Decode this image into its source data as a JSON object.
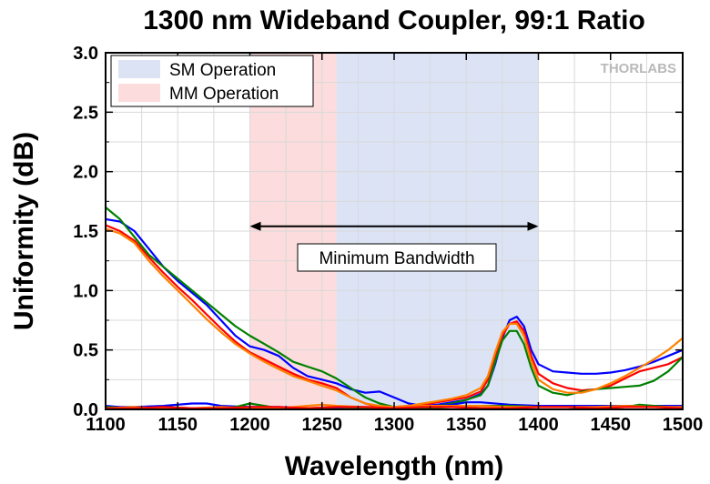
{
  "chart_data": {
    "type": "line",
    "title": "1300 nm Wideband Coupler, 99:1 Ratio",
    "xlabel": "Wavelength (nm)",
    "ylabel": "Uniformity (dB)",
    "xlim": [
      1100,
      1500
    ],
    "ylim": [
      0.0,
      3.0
    ],
    "x_ticks": [
      "1100",
      "1150",
      "1200",
      "1250",
      "1300",
      "1350",
      "1400",
      "1450",
      "1500"
    ],
    "y_ticks": [
      "0.0",
      "0.5",
      "1.0",
      "1.5",
      "2.0",
      "2.5",
      "3.0"
    ],
    "grid": true,
    "legend_position": "top-left",
    "logo": "THORLABS",
    "bands": [
      {
        "name": "SM Operation",
        "x_start": 1260,
        "x_end": 1400,
        "color": "#dbe3f5"
      },
      {
        "name": "MM Operation",
        "x_start": 1200,
        "x_end": 1260,
        "color": "#fcdcdc"
      }
    ],
    "annotation": {
      "text": "Minimum Bandwidth",
      "arrow_x_start": 1200,
      "arrow_x_end": 1400,
      "arrow_y": 1.54
    },
    "series": [
      {
        "color": "#0000ff",
        "x": [
          1100,
          1110,
          1120,
          1130,
          1140,
          1150,
          1160,
          1170,
          1180,
          1190,
          1200,
          1210,
          1220,
          1230,
          1240,
          1250,
          1260,
          1270,
          1280,
          1290,
          1300,
          1310,
          1320,
          1330,
          1340,
          1350,
          1360,
          1365,
          1370,
          1375,
          1380,
          1385,
          1390,
          1395,
          1400,
          1410,
          1420,
          1430,
          1440,
          1450,
          1460,
          1470,
          1480,
          1490,
          1500
        ],
        "y": [
          1.6,
          1.58,
          1.5,
          1.35,
          1.2,
          1.08,
          0.98,
          0.88,
          0.75,
          0.62,
          0.53,
          0.5,
          0.45,
          0.35,
          0.28,
          0.25,
          0.22,
          0.17,
          0.14,
          0.15,
          0.1,
          0.05,
          0.03,
          0.04,
          0.06,
          0.08,
          0.13,
          0.2,
          0.38,
          0.6,
          0.75,
          0.78,
          0.7,
          0.5,
          0.38,
          0.32,
          0.31,
          0.3,
          0.3,
          0.31,
          0.33,
          0.36,
          0.4,
          0.45,
          0.5
        ]
      },
      {
        "color": "#ff0000",
        "x": [
          1100,
          1110,
          1120,
          1130,
          1140,
          1150,
          1160,
          1170,
          1180,
          1190,
          1200,
          1210,
          1220,
          1230,
          1240,
          1250,
          1260,
          1270,
          1280,
          1290,
          1300,
          1310,
          1320,
          1330,
          1340,
          1350,
          1360,
          1365,
          1370,
          1375,
          1380,
          1385,
          1390,
          1395,
          1400,
          1410,
          1420,
          1430,
          1440,
          1450,
          1460,
          1470,
          1480,
          1490,
          1500
        ],
        "y": [
          1.55,
          1.5,
          1.42,
          1.28,
          1.15,
          1.03,
          0.92,
          0.8,
          0.68,
          0.57,
          0.48,
          0.42,
          0.36,
          0.3,
          0.25,
          0.22,
          0.18,
          0.1,
          0.05,
          0.02,
          0.02,
          0.03,
          0.04,
          0.06,
          0.08,
          0.1,
          0.15,
          0.25,
          0.45,
          0.62,
          0.72,
          0.74,
          0.66,
          0.45,
          0.3,
          0.22,
          0.18,
          0.16,
          0.17,
          0.2,
          0.26,
          0.32,
          0.35,
          0.38,
          0.44
        ]
      },
      {
        "color": "#008000",
        "x": [
          1100,
          1110,
          1120,
          1130,
          1140,
          1150,
          1160,
          1170,
          1180,
          1190,
          1200,
          1210,
          1220,
          1230,
          1240,
          1250,
          1260,
          1270,
          1280,
          1290,
          1300,
          1310,
          1320,
          1330,
          1340,
          1350,
          1360,
          1365,
          1370,
          1375,
          1380,
          1385,
          1390,
          1395,
          1400,
          1410,
          1420,
          1430,
          1440,
          1450,
          1460,
          1470,
          1480,
          1490,
          1500
        ],
        "y": [
          1.7,
          1.6,
          1.45,
          1.3,
          1.2,
          1.1,
          1.0,
          0.9,
          0.8,
          0.7,
          0.62,
          0.55,
          0.48,
          0.4,
          0.36,
          0.32,
          0.26,
          0.18,
          0.1,
          0.05,
          0.02,
          0.01,
          0.02,
          0.03,
          0.05,
          0.08,
          0.12,
          0.2,
          0.4,
          0.58,
          0.66,
          0.66,
          0.55,
          0.35,
          0.2,
          0.14,
          0.12,
          0.15,
          0.17,
          0.18,
          0.19,
          0.2,
          0.24,
          0.32,
          0.44
        ]
      },
      {
        "color": "#ff8000",
        "x": [
          1100,
          1110,
          1120,
          1130,
          1140,
          1150,
          1160,
          1170,
          1180,
          1190,
          1200,
          1210,
          1220,
          1230,
          1240,
          1250,
          1260,
          1270,
          1280,
          1290,
          1300,
          1310,
          1320,
          1330,
          1340,
          1350,
          1360,
          1365,
          1370,
          1375,
          1380,
          1385,
          1390,
          1395,
          1400,
          1410,
          1420,
          1430,
          1440,
          1450,
          1460,
          1470,
          1480,
          1490,
          1500
        ],
        "y": [
          1.52,
          1.48,
          1.4,
          1.25,
          1.12,
          1.0,
          0.88,
          0.76,
          0.65,
          0.55,
          0.47,
          0.4,
          0.34,
          0.28,
          0.24,
          0.2,
          0.16,
          0.1,
          0.05,
          0.03,
          0.02,
          0.03,
          0.05,
          0.07,
          0.09,
          0.12,
          0.18,
          0.28,
          0.48,
          0.65,
          0.72,
          0.72,
          0.62,
          0.4,
          0.25,
          0.17,
          0.14,
          0.14,
          0.17,
          0.22,
          0.28,
          0.35,
          0.42,
          0.5,
          0.6
        ]
      },
      {
        "color": "#0000ff",
        "x": [
          1100,
          1110,
          1120,
          1140,
          1160,
          1170,
          1180,
          1200,
          1220,
          1240,
          1260,
          1280,
          1300,
          1320,
          1340,
          1350,
          1360,
          1380,
          1400,
          1420,
          1440,
          1460,
          1480,
          1500
        ],
        "y": [
          0.03,
          0.02,
          0.02,
          0.03,
          0.05,
          0.05,
          0.03,
          0.02,
          0.02,
          0.01,
          0.01,
          0.01,
          0.01,
          0.02,
          0.04,
          0.06,
          0.06,
          0.04,
          0.03,
          0.03,
          0.03,
          0.03,
          0.03,
          0.03
        ]
      },
      {
        "color": "#008000",
        "x": [
          1100,
          1120,
          1140,
          1160,
          1180,
          1190,
          1200,
          1210,
          1220,
          1240,
          1260,
          1280,
          1300,
          1320,
          1340,
          1360,
          1380,
          1400,
          1420,
          1440,
          1460,
          1470,
          1480,
          1490,
          1500
        ],
        "y": [
          0.02,
          0.01,
          0.02,
          0.01,
          0.01,
          0.02,
          0.05,
          0.03,
          0.01,
          0.01,
          0.02,
          0.01,
          0.01,
          0.01,
          0.02,
          0.03,
          0.03,
          0.02,
          0.02,
          0.01,
          0.02,
          0.04,
          0.03,
          0.02,
          0.01
        ]
      },
      {
        "color": "#ff8000",
        "x": [
          1100,
          1120,
          1140,
          1160,
          1180,
          1200,
          1220,
          1240,
          1250,
          1260,
          1280,
          1300,
          1320,
          1340,
          1360,
          1380,
          1400,
          1420,
          1440,
          1460,
          1480,
          1500
        ],
        "y": [
          0.01,
          0.02,
          0.01,
          0.01,
          0.02,
          0.01,
          0.01,
          0.03,
          0.04,
          0.03,
          0.02,
          0.02,
          0.03,
          0.03,
          0.03,
          0.02,
          0.02,
          0.02,
          0.02,
          0.03,
          0.02,
          0.02
        ]
      },
      {
        "color": "#ff0000",
        "x": [
          1100,
          1120,
          1140,
          1160,
          1180,
          1200,
          1220,
          1240,
          1260,
          1280,
          1300,
          1320,
          1340,
          1360,
          1380,
          1400,
          1420,
          1440,
          1460,
          1480,
          1500
        ],
        "y": [
          0.01,
          0.01,
          0.02,
          0.01,
          0.01,
          0.02,
          0.02,
          0.01,
          0.02,
          0.02,
          0.01,
          0.02,
          0.02,
          0.01,
          0.01,
          0.02,
          0.02,
          0.01,
          0.02,
          0.02,
          0.01
        ]
      }
    ]
  }
}
